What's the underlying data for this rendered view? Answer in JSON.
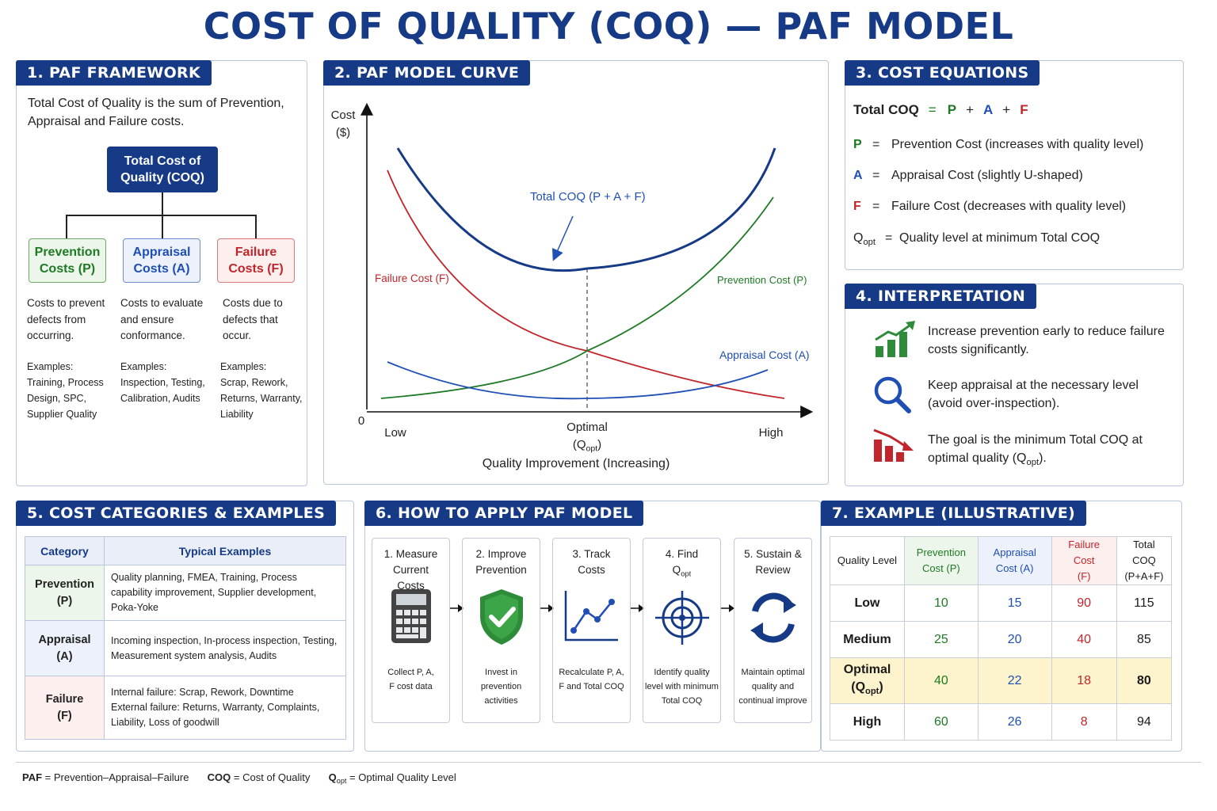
{
  "title": "COST OF QUALITY (COQ) — PAF MODEL",
  "colors": {
    "navy": "#163a86",
    "prevention": "#1e7a24",
    "appraisal": "#1f4fb5",
    "failure": "#c0262b",
    "optimal_highlight": "#fdf3cc"
  },
  "framework": {
    "heading": "1.  PAF FRAMEWORK",
    "intro": "Total Cost of Quality is the sum of Prevention, Appraisal and Failure costs.",
    "root": "Total Cost of Quality (COQ)",
    "prevention": {
      "label": "Prevention Costs (P)",
      "desc": "Costs to prevent defects from occurring.",
      "examples_label": "Examples:",
      "examples": "Training, Process Design, SPC, Supplier Quality"
    },
    "appraisal": {
      "label": "Appraisal Costs (A)",
      "desc": "Costs to evaluate and ensure conformance.",
      "examples_label": "Examples:",
      "examples": "Inspection, Testing, Calibration, Audits"
    },
    "failure": {
      "label": "Failure Costs (F)",
      "desc": "Costs due to defects that occur.",
      "examples_label": "Examples:",
      "examples": "Scrap, Rework, Returns, Warranty, Liability"
    }
  },
  "curve": {
    "heading": "2. PAF MODEL CURVE",
    "y_label": "Cost ($)",
    "x_label": "Quality Improvement (Increasing)",
    "origin": "0",
    "x_low": "Low",
    "x_optimal": "Optimal",
    "x_optimal_sub": "(Qopt)",
    "x_high": "High",
    "labels": {
      "total": "Total COQ (P + A + F)",
      "failure": "Failure Cost (F)",
      "prevention": "Prevention Cost (P)",
      "appraisal": "Appraisal Cost (A)"
    }
  },
  "chart_data": {
    "type": "line",
    "title": "",
    "xlabel": "Quality Improvement (Increasing)",
    "ylabel": "Cost ($)",
    "x_ticks": [
      "Low",
      "Optimal (Qopt)",
      "High"
    ],
    "series": [
      {
        "name": "Total COQ (P + A + F)",
        "shape": "U-shaped",
        "color": "#163a86"
      },
      {
        "name": "Failure Cost (F)",
        "shape": "decreasing",
        "color": "#c0262b"
      },
      {
        "name": "Prevention Cost (P)",
        "shape": "increasing",
        "color": "#1e7a24"
      },
      {
        "name": "Appraisal Cost (A)",
        "shape": "slightly U-shaped",
        "color": "#1f4fb5"
      }
    ],
    "grid": false
  },
  "equations": {
    "heading": "3. COST EQUATIONS",
    "total_label": "Total COQ",
    "eq": "=",
    "plus": "+",
    "P": "P",
    "A": "A",
    "F": "F",
    "p_desc": "Prevention Cost (increases with quality level)",
    "a_desc": "Appraisal Cost (slightly U-shaped)",
    "f_desc": "Failure Cost (decreases with quality level)",
    "q_sym": "Q",
    "q_sub": "opt",
    "q_desc": "Quality level at minimum Total COQ"
  },
  "interpretation": {
    "heading": "4. INTERPRETATION",
    "items": [
      {
        "icon": "growth-chart-icon",
        "text": "Increase prevention early to reduce failure costs significantly."
      },
      {
        "icon": "magnifier-icon",
        "text": "Keep appraisal at the necessary level (avoid over-inspection)."
      },
      {
        "icon": "declining-chart-icon",
        "text": "The goal is the minimum Total COQ at optimal quality (",
        "sub": "opt",
        "tail": ")."
      }
    ]
  },
  "categories": {
    "heading": "5. COST CATEGORIES & EXAMPLES",
    "col_category": "Category",
    "col_examples": "Typical Examples",
    "rows": [
      {
        "cat": "Prevention",
        "code": "(P)",
        "examples": "Quality planning, FMEA, Training, Process capability improvement, Supplier development, Poka-Yoke"
      },
      {
        "cat": "Appraisal",
        "code": "(A)",
        "examples": "Incoming inspection, In-process inspection, Testing, Measurement system analysis, Audits"
      },
      {
        "cat": "Failure",
        "code": "(F)",
        "examples_internal": "Internal failure: Scrap, Rework, Downtime",
        "examples_external": "External failure: Returns, Warranty, Complaints, Liability, Loss of goodwill"
      }
    ]
  },
  "apply": {
    "heading": "6. HOW TO APPLY PAF MODEL",
    "steps": [
      {
        "title": "1. Measure Current Costs",
        "icon": "calculator-icon",
        "desc": "Collect P, A, F cost data"
      },
      {
        "title": "2. Improve Prevention",
        "icon": "shield-check-icon",
        "desc": "Invest in prevention activities"
      },
      {
        "title": "3. Track Costs",
        "icon": "line-chart-icon",
        "desc": "Recalculate P, A, F and Total COQ"
      },
      {
        "title_a": "4. Find",
        "title_b": "Q",
        "title_sub": "opt",
        "icon": "target-icon",
        "desc": "Identify quality level with minimum Total COQ"
      },
      {
        "title": "5. Sustain & Review",
        "icon": "cycle-icon",
        "desc": "Maintain optimal quality and continual improve"
      }
    ]
  },
  "example": {
    "heading": "7. EXAMPLE (ILLUSTRATIVE)",
    "headers": [
      "Quality Level",
      "Prevention Cost (P)",
      "Appraisal Cost (A)",
      "Failure Cost (F)",
      "Total COQ (P+A+F)"
    ],
    "rows": [
      {
        "level": "Low",
        "p": "10",
        "a": "15",
        "f": "90",
        "total": "115"
      },
      {
        "level": "Medium",
        "p": "25",
        "a": "20",
        "f": "40",
        "total": "85"
      },
      {
        "level": "Optimal",
        "level_sub_pre": "(Q",
        "level_sub": "opt",
        "level_sub_post": ")",
        "p": "40",
        "a": "22",
        "f": "18",
        "total": "80"
      },
      {
        "level": "High",
        "p": "60",
        "a": "26",
        "f": "8",
        "total": "94"
      }
    ]
  },
  "footer": {
    "paf_abbr": "PAF",
    "paf_def": "= Prevention–Appraisal–Failure",
    "coq_abbr": "COQ",
    "coq_def": "= Cost of Quality",
    "q_abbr": "Q",
    "q_sub": "opt",
    "q_def": "= Optimal Quality Level"
  }
}
